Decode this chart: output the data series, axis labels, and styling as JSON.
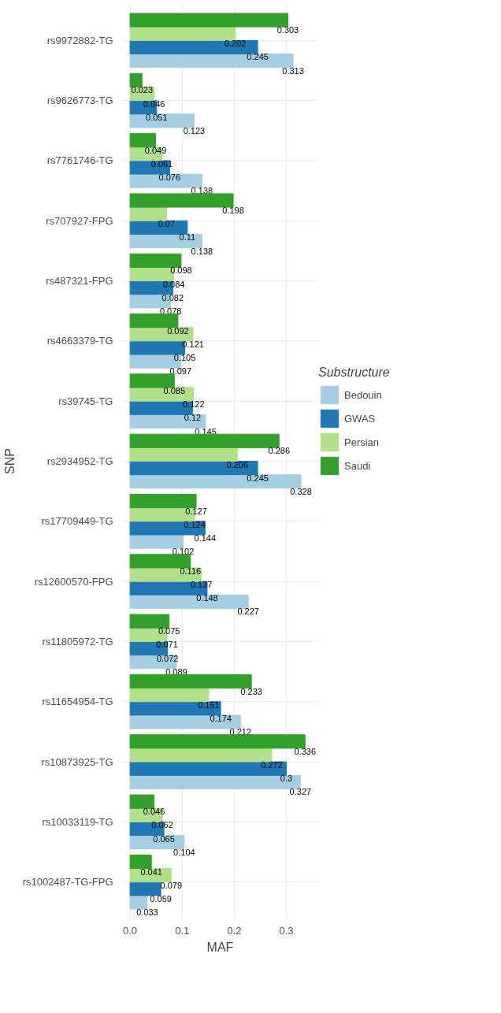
{
  "chart_data": {
    "type": "bar",
    "orientation": "horizontal",
    "xlabel": "MAF",
    "ylabel": "SNP",
    "legend_title": "Substructure",
    "legend": "right",
    "grid": true,
    "data_labels": true,
    "categories": [
      "rs9972882-TG",
      "rs9626773-TG",
      "rs7761746-TG",
      "rs707927-FPG",
      "rs487321-FPG",
      "rs4663379-TG",
      "rs39745-TG",
      "rs2934952-TG",
      "rs17709449-TG",
      "rs12600570-FPG",
      "rs11805972-TG",
      "rs11654954-TG",
      "rs10873925-TG",
      "rs10033119-TG",
      "rs1002487-TG-FPG"
    ],
    "xlim": [
      -0.016,
      0.362
    ],
    "xticks": [
      {
        "value": 0,
        "label": "0.0"
      },
      0.1,
      0.2,
      0.3
    ],
    "series": [
      {
        "name": "Bedouin",
        "color": "#a6cee3",
        "values": [
          0.313,
          0.123,
          0.138,
          0.138,
          0.078,
          0.097,
          0.145,
          0.328,
          0.102,
          0.227,
          0.089,
          0.212,
          0.327,
          0.104,
          0.033
        ]
      },
      {
        "name": "GWAS",
        "color": "#1f78b4",
        "values": [
          0.245,
          0.051,
          0.076,
          0.11,
          0.082,
          0.105,
          0.12,
          0.245,
          0.144,
          0.148,
          0.072,
          0.174,
          0.3,
          0.065,
          0.059
        ]
      },
      {
        "name": "Persian",
        "color": "#b2df8a",
        "values": [
          0.202,
          0.046,
          0.061,
          0.07,
          0.084,
          0.121,
          0.122,
          0.206,
          0.124,
          0.137,
          0.071,
          0.151,
          0.272,
          0.062,
          0.079
        ]
      },
      {
        "name": "Saudi",
        "color": "#33a02c",
        "values": [
          0.303,
          0.023,
          0.049,
          0.198,
          0.098,
          0.092,
          0.085,
          0.286,
          0.127,
          0.116,
          0.075,
          0.233,
          0.336,
          0.046,
          0.041
        ]
      }
    ]
  }
}
